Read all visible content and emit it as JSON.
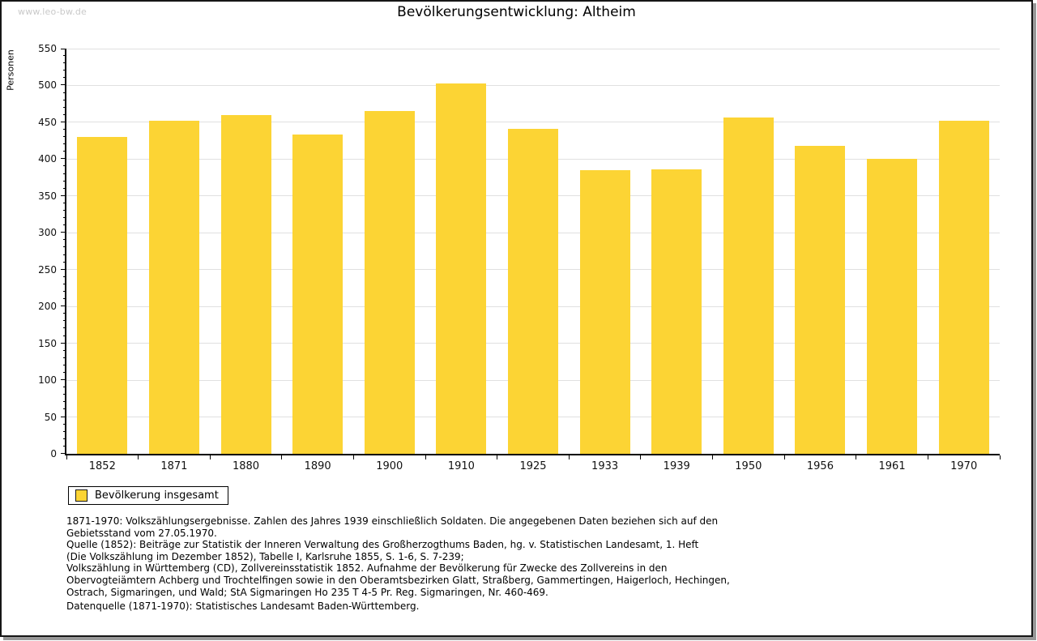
{
  "page": {
    "watermark": "www.leo-bw.de",
    "title": "Bevölkerungsentwicklung: Altheim"
  },
  "chart_data": {
    "type": "bar",
    "title": "Bevölkerungsentwicklung: Altheim",
    "xlabel": "",
    "ylabel": "Personen",
    "categories": [
      "1852",
      "1871",
      "1880",
      "1890",
      "1900",
      "1910",
      "1925",
      "1933",
      "1939",
      "1950",
      "1956",
      "1961",
      "1970"
    ],
    "values": [
      430,
      452,
      460,
      433,
      465,
      503,
      441,
      385,
      386,
      456,
      418,
      400,
      452
    ],
    "series_name": "Bevölkerung insgesamt",
    "ylim": [
      0,
      550
    ],
    "ytick_step": 50,
    "yminor_step": 10,
    "grid": true,
    "legend_position": "bottom-left",
    "bar_color": "#fcd434",
    "grid_color": "#e0e0e0",
    "axis_color": "#000000"
  },
  "footnotes": {
    "lines": [
      "1871-1970: Volkszählungsergebnisse. Zahlen des Jahres 1939 einschließlich Soldaten. Die angegebenen Daten beziehen sich auf den",
      "Gebietsstand vom 27.05.1970.",
      "Quelle (1852): Beiträge zur Statistik der Inneren Verwaltung des Großherzogthums Baden, hg. v. Statistischen Landesamt, 1. Heft",
      "(Die Volkszählung im Dezember 1852), Tabelle I, Karlsruhe 1855, S. 1-6, S. 7-239;",
      "Volkszählung in Württemberg (CD), Zollvereinsstatistik 1852. Aufnahme der Bevölkerung für Zwecke des Zollvereins in den",
      "Obervogteiämtern Achberg und Trochtelfingen sowie in den Oberamtsbezirken Glatt, Straßberg, Gammertingen, Haigerloch, Hechingen,",
      "Ostrach, Sigmaringen, und Wald; StA Sigmaringen Ho 235 T 4-5 Pr. Reg. Sigmaringen, Nr. 460-469."
    ],
    "datasource": "Datenquelle (1871-1970): Statistisches Landesamt Baden-Württemberg."
  }
}
